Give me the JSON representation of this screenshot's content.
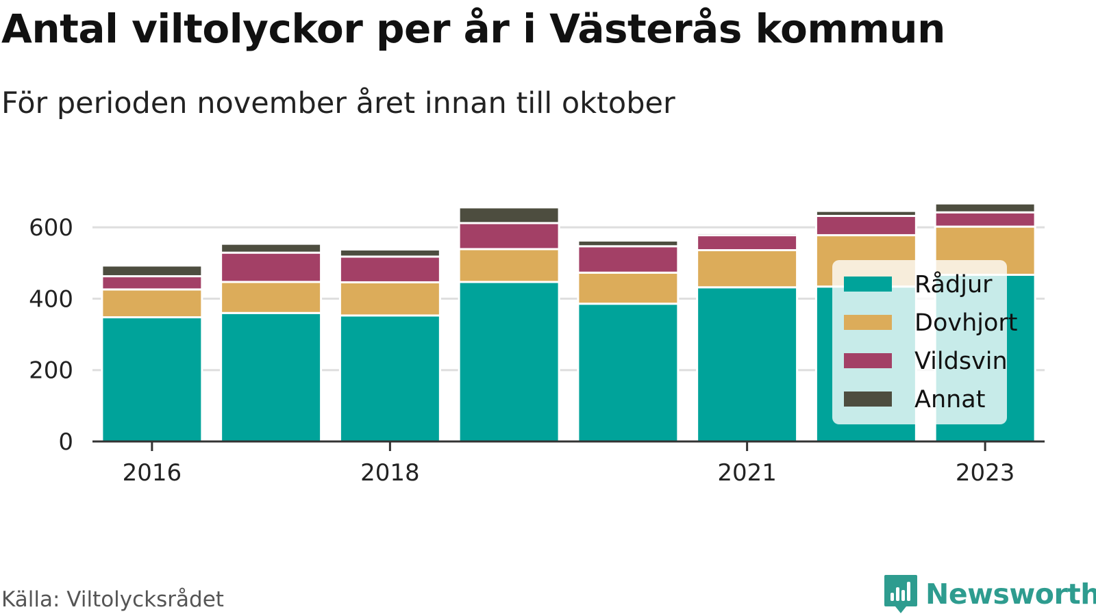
{
  "title": "Antal viltolyckor per år i Västerås kommun",
  "subtitle": "För perioden november året innan till oktober",
  "source": "Källa: Viltolycksrådet",
  "brand": {
    "name": "Newsworthy",
    "icon": "newsworthy-logo-icon",
    "color": "#2e9c8f"
  },
  "chart_data": {
    "type": "bar",
    "stacked": true,
    "categories": [
      "2016",
      "2017",
      "2018",
      "2019",
      "2020",
      "2021",
      "2022",
      "2023"
    ],
    "x_tick_labels": [
      "2016",
      "2018",
      "2021",
      "2023"
    ],
    "series": [
      {
        "name": "Rådjur",
        "color": "#00a39a",
        "values": [
          348,
          360,
          353,
          447,
          386,
          432,
          434,
          467
        ]
      },
      {
        "name": "Dovhjort",
        "color": "#dcac5a",
        "values": [
          78,
          87,
          93,
          92,
          87,
          104,
          144,
          135
        ]
      },
      {
        "name": "Vildsvin",
        "color": "#a34066",
        "values": [
          37,
          82,
          72,
          73,
          74,
          42,
          54,
          40
        ]
      },
      {
        "name": "Annat",
        "color": "#4d4d3f",
        "values": [
          30,
          25,
          20,
          44,
          16,
          6,
          14,
          25
        ]
      }
    ],
    "ylim": [
      0,
      700
    ],
    "y_ticks": [
      0,
      200,
      400,
      600
    ],
    "grid": true,
    "legend_position": "bottom-right",
    "xlabel": "",
    "ylabel": ""
  }
}
